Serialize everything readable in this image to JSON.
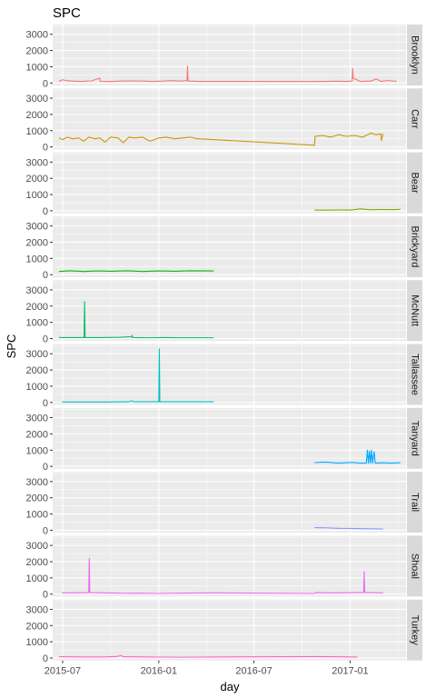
{
  "chart_data": {
    "type": "line",
    "title": "SPC",
    "xlabel": "day",
    "ylabel": "SPC",
    "x_ticks": [
      "2015-07",
      "2016-01",
      "2016-07",
      "2017-01"
    ],
    "y_ticks": [
      0,
      1000,
      2000,
      3000
    ],
    "ylim": [
      -150,
      3600
    ],
    "xlim": [
      "2015-06-12",
      "2017-04-18"
    ],
    "grid": true,
    "legend": "none",
    "facets": [
      {
        "label": "Brooklyn",
        "color": "#F8766D",
        "points": [
          [
            "2015-06-24",
            100
          ],
          [
            "2015-07-01",
            200
          ],
          [
            "2015-07-08",
            150
          ],
          [
            "2015-07-20",
            120
          ],
          [
            "2015-08-05",
            100
          ],
          [
            "2015-08-25",
            130
          ],
          [
            "2015-09-10",
            300
          ],
          [
            "2015-09-11",
            100
          ],
          [
            "2015-10-01",
            90
          ],
          [
            "2015-10-20",
            120
          ],
          [
            "2015-11-10",
            130
          ],
          [
            "2015-12-01",
            120
          ],
          [
            "2015-12-20",
            100
          ],
          [
            "2016-01-10",
            120
          ],
          [
            "2016-01-25",
            150
          ],
          [
            "2016-02-10",
            120
          ],
          [
            "2016-02-24",
            150
          ],
          [
            "2016-02-25",
            1040
          ],
          [
            "2016-02-26",
            120
          ],
          [
            "2016-03-20",
            100
          ],
          [
            "2016-04-15",
            100
          ],
          [
            "2016-10-25",
            90
          ],
          [
            "2016-11-15",
            100
          ],
          [
            "2016-12-05",
            110
          ],
          [
            "2016-12-25",
            100
          ],
          [
            "2017-01-05",
            120
          ],
          [
            "2017-01-06",
            900
          ],
          [
            "2017-01-07",
            300
          ],
          [
            "2017-01-20",
            100
          ],
          [
            "2017-02-10",
            120
          ],
          [
            "2017-02-20",
            250
          ],
          [
            "2017-03-01",
            100
          ],
          [
            "2017-03-15",
            150
          ],
          [
            "2017-03-31",
            100
          ]
        ]
      },
      {
        "label": "Carr",
        "color": "#CD9600",
        "points": [
          [
            "2015-06-24",
            550
          ],
          [
            "2015-07-01",
            450
          ],
          [
            "2015-07-10",
            600
          ],
          [
            "2015-07-20",
            500
          ],
          [
            "2015-08-01",
            550
          ],
          [
            "2015-08-10",
            350
          ],
          [
            "2015-08-20",
            600
          ],
          [
            "2015-09-01",
            500
          ],
          [
            "2015-09-10",
            550
          ],
          [
            "2015-09-20",
            300
          ],
          [
            "2015-10-01",
            600
          ],
          [
            "2015-10-15",
            550
          ],
          [
            "2015-10-25",
            250
          ],
          [
            "2015-11-05",
            600
          ],
          [
            "2015-11-15",
            550
          ],
          [
            "2015-12-01",
            600
          ],
          [
            "2015-12-15",
            350
          ],
          [
            "2016-01-01",
            550
          ],
          [
            "2016-01-15",
            600
          ],
          [
            "2016-02-01",
            500
          ],
          [
            "2016-02-15",
            550
          ],
          [
            "2016-03-01",
            600
          ],
          [
            "2016-03-15",
            500
          ],
          [
            "2016-04-15",
            450
          ],
          [
            "2016-10-25",
            100
          ],
          [
            "2016-10-26",
            650
          ],
          [
            "2016-11-10",
            700
          ],
          [
            "2016-11-25",
            600
          ],
          [
            "2016-12-10",
            750
          ],
          [
            "2016-12-25",
            650
          ],
          [
            "2017-01-10",
            700
          ],
          [
            "2017-01-25",
            600
          ],
          [
            "2017-02-10",
            850
          ],
          [
            "2017-02-20",
            750
          ],
          [
            "2017-03-01",
            800
          ],
          [
            "2017-03-02",
            400
          ],
          [
            "2017-03-05",
            800
          ]
        ]
      },
      {
        "label": "Bear",
        "color": "#7CAE00",
        "points": [
          [
            "2016-10-25",
            40
          ],
          [
            "2016-11-15",
            40
          ],
          [
            "2016-12-10",
            50
          ],
          [
            "2017-01-05",
            50
          ],
          [
            "2017-01-20",
            120
          ],
          [
            "2017-02-10",
            60
          ],
          [
            "2017-03-01",
            80
          ],
          [
            "2017-03-25",
            70
          ],
          [
            "2017-04-07",
            90
          ]
        ]
      },
      {
        "label": "Brickyard",
        "color": "#0CB702",
        "points": [
          [
            "2015-06-24",
            200
          ],
          [
            "2015-07-15",
            240
          ],
          [
            "2015-08-10",
            200
          ],
          [
            "2015-09-05",
            230
          ],
          [
            "2015-10-01",
            210
          ],
          [
            "2015-11-01",
            240
          ],
          [
            "2015-12-01",
            200
          ],
          [
            "2016-01-01",
            230
          ],
          [
            "2016-02-01",
            210
          ],
          [
            "2016-03-01",
            240
          ],
          [
            "2016-04-15",
            230
          ]
        ]
      },
      {
        "label": "McNutt",
        "color": "#00BE67",
        "points": [
          [
            "2015-06-24",
            60
          ],
          [
            "2015-07-15",
            60
          ],
          [
            "2015-08-11",
            60
          ],
          [
            "2015-08-12",
            2280
          ],
          [
            "2015-08-13",
            60
          ],
          [
            "2015-09-15",
            60
          ],
          [
            "2015-10-20",
            80
          ],
          [
            "2015-11-10",
            120
          ],
          [
            "2015-11-11",
            200
          ],
          [
            "2015-11-12",
            60
          ],
          [
            "2015-12-15",
            50
          ],
          [
            "2016-01-15",
            60
          ],
          [
            "2016-02-15",
            50
          ],
          [
            "2016-04-15",
            50
          ]
        ]
      },
      {
        "label": "Tallassee",
        "color": "#00BFC4",
        "points": [
          [
            "2015-06-30",
            30
          ],
          [
            "2015-08-15",
            30
          ],
          [
            "2015-10-01",
            30
          ],
          [
            "2015-11-05",
            40
          ],
          [
            "2015-11-10",
            100
          ],
          [
            "2015-11-15",
            40
          ],
          [
            "2015-12-25",
            40
          ],
          [
            "2016-01-01",
            40
          ],
          [
            "2016-01-02",
            3300
          ],
          [
            "2016-01-03",
            40
          ],
          [
            "2016-02-15",
            40
          ],
          [
            "2016-04-15",
            40
          ]
        ]
      },
      {
        "label": "Tanyard",
        "color": "#00A9FF",
        "points": [
          [
            "2016-10-25",
            230
          ],
          [
            "2016-11-15",
            260
          ],
          [
            "2016-12-10",
            200
          ],
          [
            "2017-01-05",
            240
          ],
          [
            "2017-01-20",
            200
          ],
          [
            "2017-02-01",
            200
          ],
          [
            "2017-02-03",
            1000
          ],
          [
            "2017-02-05",
            200
          ],
          [
            "2017-02-07",
            950
          ],
          [
            "2017-02-09",
            200
          ],
          [
            "2017-02-11",
            1000
          ],
          [
            "2017-02-13",
            200
          ],
          [
            "2017-02-16",
            900
          ],
          [
            "2017-02-18",
            200
          ],
          [
            "2017-03-01",
            220
          ],
          [
            "2017-03-20",
            200
          ],
          [
            "2017-04-07",
            220
          ]
        ]
      },
      {
        "label": "Trail",
        "color": "#8494FF",
        "points": [
          [
            "2016-10-25",
            160
          ],
          [
            "2016-11-15",
            150
          ],
          [
            "2016-12-10",
            120
          ],
          [
            "2017-01-05",
            110
          ],
          [
            "2017-02-01",
            90
          ],
          [
            "2017-03-05",
            80
          ]
        ]
      },
      {
        "label": "Shoal",
        "color": "#ED68ED",
        "points": [
          [
            "2015-06-30",
            80
          ],
          [
            "2015-07-20",
            80
          ],
          [
            "2015-08-20",
            90
          ],
          [
            "2015-08-21",
            2200
          ],
          [
            "2015-08-22",
            90
          ],
          [
            "2015-10-01",
            70
          ],
          [
            "2015-11-01",
            50
          ],
          [
            "2015-12-01",
            60
          ],
          [
            "2016-01-01",
            40
          ],
          [
            "2016-02-01",
            60
          ],
          [
            "2016-04-15",
            80
          ],
          [
            "2016-10-25",
            40
          ],
          [
            "2016-10-26",
            90
          ],
          [
            "2016-12-01",
            80
          ],
          [
            "2017-01-15",
            90
          ],
          [
            "2017-01-27",
            100
          ],
          [
            "2017-01-28",
            1380
          ],
          [
            "2017-01-29",
            100
          ],
          [
            "2017-03-05",
            80
          ]
        ]
      },
      {
        "label": "Turkey",
        "color": "#FF61C3",
        "points": [
          [
            "2015-06-24",
            80
          ],
          [
            "2015-08-01",
            70
          ],
          [
            "2015-09-15",
            60
          ],
          [
            "2015-10-15",
            100
          ],
          [
            "2015-10-20",
            160
          ],
          [
            "2015-10-25",
            80
          ],
          [
            "2015-12-15",
            60
          ],
          [
            "2016-02-15",
            50
          ],
          [
            "2016-04-15",
            60
          ],
          [
            "2016-10-25",
            90
          ],
          [
            "2016-12-01",
            80
          ],
          [
            "2017-01-15",
            60
          ]
        ]
      }
    ]
  }
}
